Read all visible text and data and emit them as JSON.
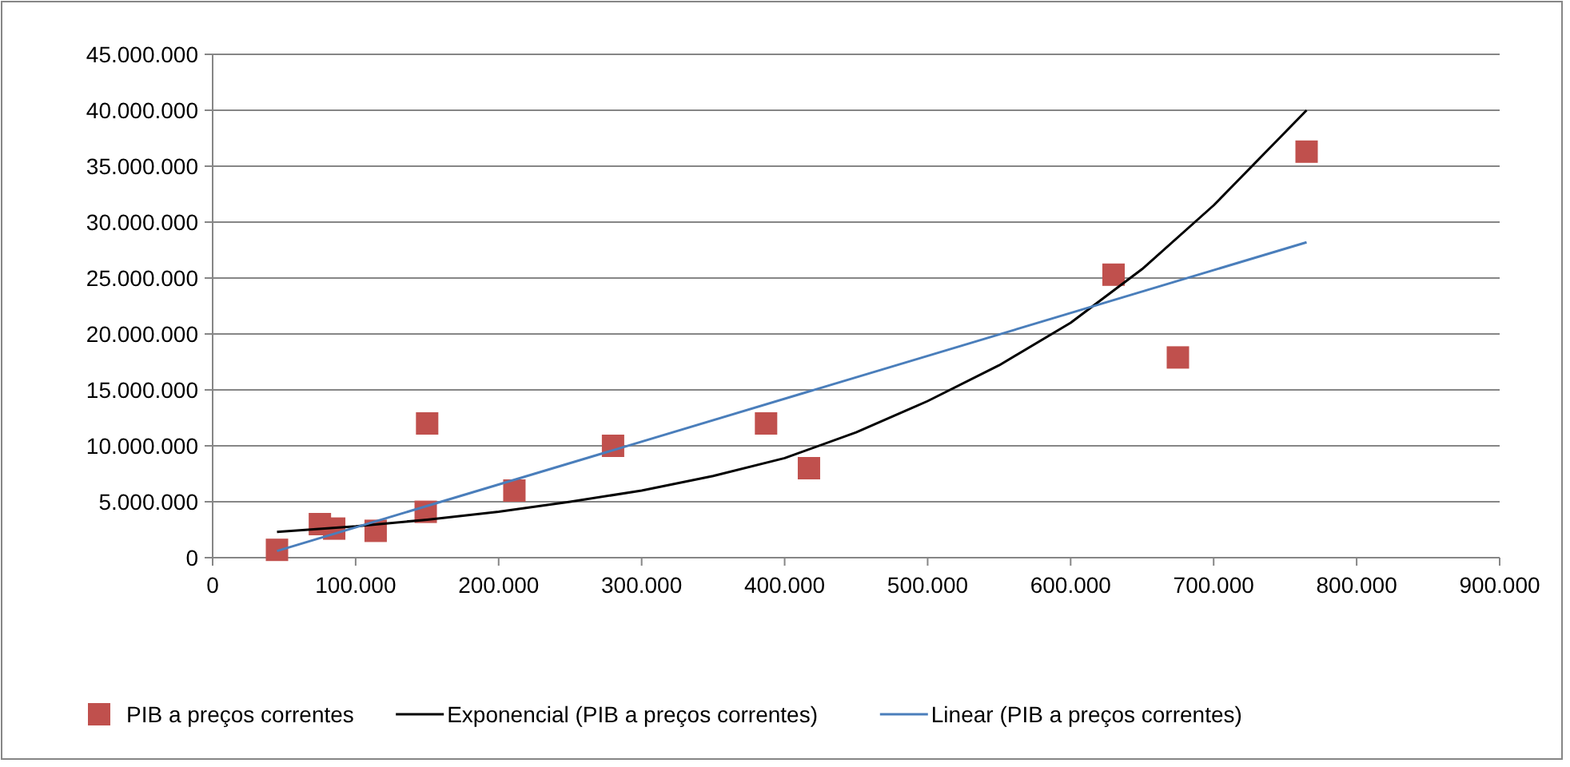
{
  "chart_data": {
    "type": "scatter",
    "xlim": [
      0,
      900000
    ],
    "ylim": [
      0,
      45000000
    ],
    "xticks": [
      {
        "value": 0,
        "label": "0"
      },
      {
        "value": 100000,
        "label": "100.000"
      },
      {
        "value": 200000,
        "label": "200.000"
      },
      {
        "value": 300000,
        "label": "300.000"
      },
      {
        "value": 400000,
        "label": "400.000"
      },
      {
        "value": 500000,
        "label": "500.000"
      },
      {
        "value": 600000,
        "label": "600.000"
      },
      {
        "value": 700000,
        "label": "700.000"
      },
      {
        "value": 800000,
        "label": "800.000"
      },
      {
        "value": 900000,
        "label": "900.000"
      }
    ],
    "yticks": [
      {
        "value": 0,
        "label": "0"
      },
      {
        "value": 5000000,
        "label": "5.000.000"
      },
      {
        "value": 10000000,
        "label": "10.000.000"
      },
      {
        "value": 15000000,
        "label": "15.000.000"
      },
      {
        "value": 20000000,
        "label": "20.000.000"
      },
      {
        "value": 25000000,
        "label": "25.000.000"
      },
      {
        "value": 30000000,
        "label": "30.000.000"
      },
      {
        "value": 35000000,
        "label": "35.000.000"
      },
      {
        "value": 40000000,
        "label": "40.000.000"
      },
      {
        "value": 45000000,
        "label": "45.000.000"
      }
    ],
    "grid": "y",
    "legend": "bottom",
    "series": [
      {
        "name": "PIB a preços correntes",
        "marker": "square",
        "color": "#c0504d",
        "x": [
          45000,
          75000,
          85000,
          114000,
          149000,
          150000,
          211000,
          280000,
          387000,
          417000,
          630000,
          675000,
          765000
        ],
        "values": [
          700000,
          3000000,
          2600000,
          2400000,
          4100000,
          12000000,
          6000000,
          10000000,
          12000000,
          8000000,
          25300000,
          17900000,
          36300000
        ]
      },
      {
        "name": "Exponencial (PIB a preços correntes)",
        "type": "line",
        "marker": "none",
        "color": "#000000",
        "x": [
          45000,
          100000,
          150000,
          200000,
          250000,
          300000,
          350000,
          400000,
          450000,
          500000,
          550000,
          600000,
          650000,
          700000,
          765000
        ],
        "values": [
          2300000,
          2800000,
          3400000,
          4100000,
          5000000,
          6000000,
          7300000,
          8900000,
          11200000,
          14000000,
          17200000,
          21000000,
          25800000,
          31500000,
          40000000
        ]
      },
      {
        "name": "Linear (PIB a preços correntes)",
        "type": "line",
        "marker": "none",
        "color": "#4a7ebb",
        "x": [
          45000,
          765000
        ],
        "values": [
          600000,
          28200000
        ]
      }
    ]
  }
}
